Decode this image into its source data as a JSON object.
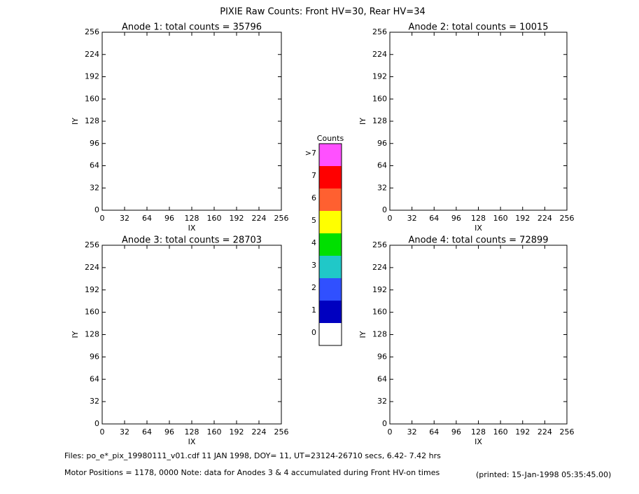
{
  "title": "PIXIE Raw Counts:  Front HV=30, Rear HV=34",
  "chart_data": [
    {
      "type": "heatmap",
      "title": "Anode 1: total counts = 35796",
      "xlabel": "IX",
      "ylabel": "IY",
      "xlim": [
        0,
        256
      ],
      "ylim": [
        0,
        256
      ],
      "xticks": [
        0,
        32,
        64,
        96,
        128,
        160,
        192,
        224,
        256
      ],
      "yticks": [
        0,
        32,
        64,
        96,
        128,
        160,
        192,
        224,
        256
      ]
    },
    {
      "type": "heatmap",
      "title": "Anode 2: total counts = 10015",
      "xlabel": "IX",
      "ylabel": "IY",
      "xlim": [
        0,
        256
      ],
      "ylim": [
        0,
        256
      ],
      "xticks": [
        0,
        32,
        64,
        96,
        128,
        160,
        192,
        224,
        256
      ],
      "yticks": [
        0,
        32,
        64,
        96,
        128,
        160,
        192,
        224,
        256
      ]
    },
    {
      "type": "heatmap",
      "title": "Anode 3: total counts = 28703",
      "xlabel": "IX",
      "ylabel": "IY",
      "xlim": [
        0,
        256
      ],
      "ylim": [
        0,
        256
      ],
      "xticks": [
        0,
        32,
        64,
        96,
        128,
        160,
        192,
        224,
        256
      ],
      "yticks": [
        0,
        32,
        64,
        96,
        128,
        160,
        192,
        224,
        256
      ]
    },
    {
      "type": "heatmap",
      "title": "Anode 4: total counts = 72899",
      "xlabel": "IX",
      "ylabel": "IY",
      "xlim": [
        0,
        256
      ],
      "ylim": [
        0,
        256
      ],
      "xticks": [
        0,
        32,
        64,
        96,
        128,
        160,
        192,
        224,
        256
      ],
      "yticks": [
        0,
        32,
        64,
        96,
        128,
        160,
        192,
        224,
        256
      ]
    },
    {
      "type": "colorbar",
      "title": "Counts",
      "categories": [
        "0",
        "1",
        "2",
        "3",
        "4",
        "5",
        "6",
        "7",
        ">7"
      ],
      "colors": [
        "#ffffff",
        "#0000c0",
        "#3050ff",
        "#20c8c8",
        "#00e000",
        "#ffff00",
        "#ff6030",
        "#ff0000",
        "#ff50ff"
      ]
    }
  ],
  "footer": {
    "files": "Files: po_e*_pix_19980111_v01.cdf    11 JAN 1998, DOY= 11, UT=23124-26710 secs,  6.42- 7.42 hrs",
    "motor": "Motor Positions = 1178, 0000   Note: data for Anodes 3 & 4 accumulated during Front HV-on times",
    "printed": "(printed: 15-Jan-1998 05:35:45.00)"
  }
}
